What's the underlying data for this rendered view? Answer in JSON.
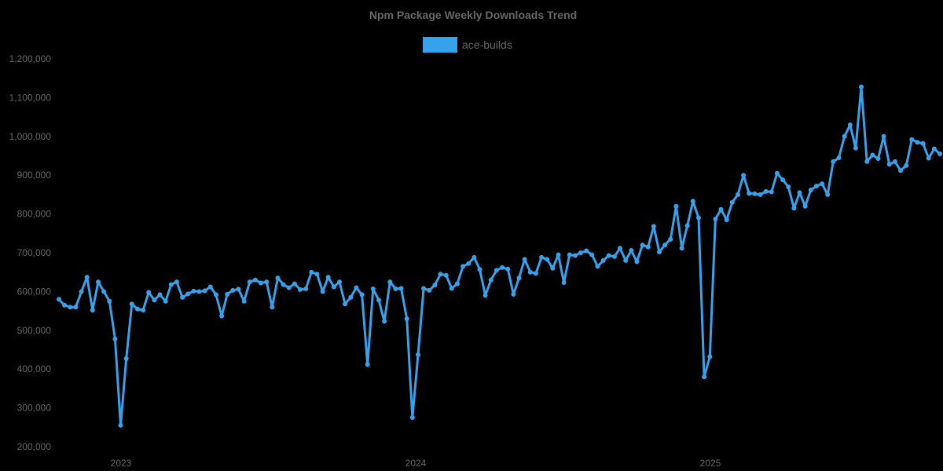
{
  "chart_data": {
    "type": "line",
    "title": "Npm Package Weekly Downloads Trend",
    "xlabel": "",
    "ylabel": "",
    "ylim": [
      200000,
      1200000
    ],
    "yticks": [
      200000,
      300000,
      400000,
      500000,
      600000,
      700000,
      800000,
      900000,
      1000000,
      1100000,
      1200000
    ],
    "ytick_labels": [
      "200,000",
      "300,000",
      "400,000",
      "500,000",
      "600,000",
      "700,000",
      "800,000",
      "900,000",
      "1,000,000",
      "1,100,000",
      "1,200,000"
    ],
    "xtick_labels": [
      "2023",
      "2024",
      "2025"
    ],
    "legend_position": "top-center",
    "grid": false,
    "color": "#36a2eb",
    "series": [
      {
        "name": "ace-builds",
        "values": [
          580000,
          565000,
          560000,
          560000,
          600000,
          637000,
          552000,
          625000,
          600000,
          575000,
          478000,
          255000,
          427000,
          568000,
          555000,
          552000,
          598000,
          578000,
          592000,
          575000,
          618000,
          625000,
          585000,
          594000,
          601000,
          600000,
          602000,
          612000,
          592000,
          537000,
          593000,
          603000,
          606000,
          575000,
          625000,
          630000,
          622000,
          625000,
          560000,
          635000,
          618000,
          610000,
          620000,
          605000,
          607000,
          650000,
          645000,
          600000,
          637000,
          612000,
          625000,
          568000,
          585000,
          610000,
          592000,
          412000,
          607000,
          578000,
          523000,
          625000,
          607000,
          608000,
          530000,
          275000,
          437000,
          608000,
          603000,
          617000,
          645000,
          642000,
          608000,
          620000,
          665000,
          672000,
          688000,
          657000,
          590000,
          630000,
          655000,
          662000,
          658000,
          593000,
          635000,
          683000,
          650000,
          647000,
          688000,
          683000,
          660000,
          695000,
          623000,
          695000,
          693000,
          700000,
          705000,
          695000,
          665000,
          680000,
          693000,
          690000,
          712000,
          680000,
          706000,
          677000,
          720000,
          715000,
          768000,
          702000,
          720000,
          735000,
          820000,
          712000,
          770000,
          833000,
          790000,
          380000,
          432000,
          787000,
          812000,
          785000,
          830000,
          850000,
          900000,
          853000,
          852000,
          850000,
          858000,
          857000,
          905000,
          888000,
          870000,
          815000,
          855000,
          820000,
          862000,
          872000,
          878000,
          850000,
          935000,
          945000,
          1000000,
          1030000,
          970000,
          1128000,
          935000,
          952000,
          943000,
          1000000,
          928000,
          935000,
          912000,
          925000,
          992000,
          985000,
          982000,
          944000,
          968000,
          955000
        ]
      }
    ]
  },
  "legend": {
    "label": "ace-builds",
    "color": "#36a2eb"
  }
}
